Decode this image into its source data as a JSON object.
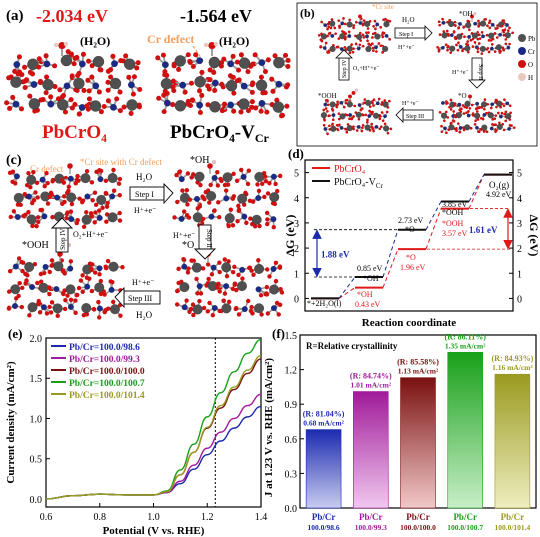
{
  "panel_a": {
    "label": "(a)",
    "e_left": "-2.034 eV",
    "e_right": "-1.564 eV",
    "water_left": "(H₂O)",
    "water_right": "(H₂O)",
    "cr_defect": "Cr defect",
    "name_left": "PbCrO₄",
    "name_right": "PbCrO₄-V",
    "name_right_sub": "Cr"
  },
  "panel_b": {
    "label": "(b)",
    "cr_site": "*Cr site",
    "oh": "*OH",
    "o": "*O",
    "ooh": "*OOH",
    "step1": "Step I",
    "step2": "Step II",
    "step3": "Step III",
    "step4": "Step IV",
    "h2o": "H₂O",
    "h_e": "H⁺+e⁻",
    "o2_h_e": "O₂+H⁺+e⁻",
    "legend": [
      {
        "name": "Pb",
        "color": "#505050"
      },
      {
        "name": "Cr",
        "color": "#1a2a8a"
      },
      {
        "name": "O",
        "color": "#d01010"
      },
      {
        "name": "H",
        "color": "#e8c8c0"
      }
    ]
  },
  "panel_c": {
    "label": "(c)",
    "cr_defect": "Cr defect",
    "cr_site": "*Cr site with Cr defect",
    "oh": "*OH",
    "o": "*O",
    "ooh": "*OOH",
    "step1": "Step I",
    "step2": "Step II",
    "step3": "Step III",
    "step4": "Step IV",
    "h2o": "H₂O",
    "h_e": "H⁺+e⁻",
    "o2_h_e": "O₂+H⁺+e⁻"
  },
  "colors": {
    "pb": "#505050",
    "cr": "#1a2a8a",
    "o": "#d01010",
    "h": "#e8c8c0",
    "red": "#e01818",
    "orange": "#f0a060"
  },
  "chart_data": [
    {
      "id": "d",
      "label": "(d)",
      "type": "line",
      "xlabel": "Reaction coordinate",
      "ylabel": "ΔG (eV)",
      "ylabel_right": "ΔG (eV)",
      "ylim": [
        -0.5,
        5.5
      ],
      "yticks": [
        0,
        1,
        2,
        3,
        4,
        5
      ],
      "series": [
        {
          "name": "PbCrO₄",
          "color": "#e01818",
          "values": [
            0,
            0.43,
            1.96,
            3.57,
            4.92
          ]
        },
        {
          "name": "PbCrO₄-V",
          "name_sub": "Cr",
          "color": "#111111",
          "values": [
            0,
            0.85,
            2.73,
            3.85,
            4.92
          ]
        }
      ],
      "annotations": {
        "start": "*+2H₂O(l)",
        "end": "O₂(g)",
        "v_oh": "0.85 eV",
        "v_oh_lbl": "*OH",
        "v_o": "2.73 eV",
        "v_o_lbl": "*O",
        "v_ooh": "3.85 eV",
        "v_ooh_lbl": "*OOH",
        "v_end": "4.92 eV",
        "r_oh_lbl": "*OH",
        "r_oh": "0.43 eV",
        "r_o_lbl": "*O",
        "r_o": "1.96 eV",
        "r_ooh_lbl": "*OOH",
        "r_ooh": "3.57 eV",
        "gap_black": "1.88 eV",
        "gap_red": "1.61 eV"
      }
    },
    {
      "id": "e",
      "label": "(e)",
      "type": "line",
      "xlabel": "Potential (V vs. RHE)",
      "ylabel": "Current density (mA/cm²)",
      "xlim": [
        0.6,
        1.4
      ],
      "ylim": [
        -0.1,
        2.0
      ],
      "xticks": [
        0.6,
        0.8,
        1.0,
        1.2,
        1.4
      ],
      "yticks": [
        0.0,
        0.5,
        1.0,
        1.5,
        2.0
      ],
      "dotted_x": 1.23,
      "x": [
        0.6,
        0.7,
        0.8,
        0.9,
        1.0,
        1.05,
        1.1,
        1.15,
        1.2,
        1.25,
        1.3,
        1.35,
        1.4
      ],
      "series": [
        {
          "name": "Pb/Cr=100.0/98.6",
          "color": "#1c2ab0",
          "values": [
            0.0,
            0.04,
            0.06,
            0.05,
            0.05,
            0.08,
            0.19,
            0.37,
            0.55,
            0.72,
            0.88,
            1.02,
            1.15
          ]
        },
        {
          "name": "Pb/Cr=100.0/99.3",
          "color": "#a01a9a",
          "values": [
            0.0,
            0.04,
            0.06,
            0.05,
            0.05,
            0.08,
            0.22,
            0.42,
            0.63,
            0.83,
            1.0,
            1.16,
            1.3
          ]
        },
        {
          "name": "Pb/Cr=100.0/100.0",
          "color": "#7a1010",
          "values": [
            0.0,
            0.04,
            0.06,
            0.05,
            0.05,
            0.09,
            0.3,
            0.58,
            0.88,
            1.13,
            1.36,
            1.56,
            1.74
          ]
        },
        {
          "name": "Pb/Cr=100.0/100.7",
          "color": "#18a018",
          "values": [
            0.0,
            0.04,
            0.06,
            0.05,
            0.05,
            0.1,
            0.36,
            0.68,
            1.02,
            1.32,
            1.58,
            1.81,
            1.98
          ]
        },
        {
          "name": "Pb/Cr=100.0/101.4",
          "color": "#9a9a20",
          "values": [
            0.0,
            0.04,
            0.06,
            0.05,
            0.05,
            0.09,
            0.3,
            0.58,
            0.89,
            1.16,
            1.39,
            1.6,
            1.78
          ]
        }
      ]
    },
    {
      "id": "f",
      "label": "(f)",
      "type": "bar",
      "subtitle": "R=Relative crystallinity",
      "ylabel": "J at 1.23 V vs. RHE (mA/cm²)",
      "ylim": [
        0.0,
        1.5
      ],
      "yticks": [
        0.0,
        0.3,
        0.6,
        0.9,
        1.2,
        1.5
      ],
      "categories": [
        {
          "line1": "Pb/Cr",
          "line2": "100.0/98.6",
          "color": "#1c2ab0"
        },
        {
          "line1": "Pb/Cr",
          "line2": "100.0/99.3",
          "color": "#a01a9a"
        },
        {
          "line1": "Pb/Cr",
          "line2": "100.0/100.0",
          "color": "#7a1010"
        },
        {
          "line1": "Pb/Cr",
          "line2": "100.0/100.7",
          "color": "#18a018"
        },
        {
          "line1": "Pb/Cr",
          "line2": "100.0/101.4",
          "color": "#9a9a20"
        }
      ],
      "values": [
        0.68,
        1.01,
        1.13,
        1.35,
        1.16
      ],
      "r_labels": [
        "(R: 81.04%)",
        "(R: 84.74%)",
        "(R: 85.58%)",
        "(R: 86.11%)",
        "(R: 84.93%)"
      ],
      "value_labels": [
        "0.68 mA/cm²",
        "1.01 mA/cm²",
        "1.13 mA/cm²",
        "1.35 mA/cm²",
        "1.16 mA/cm²"
      ]
    }
  ]
}
